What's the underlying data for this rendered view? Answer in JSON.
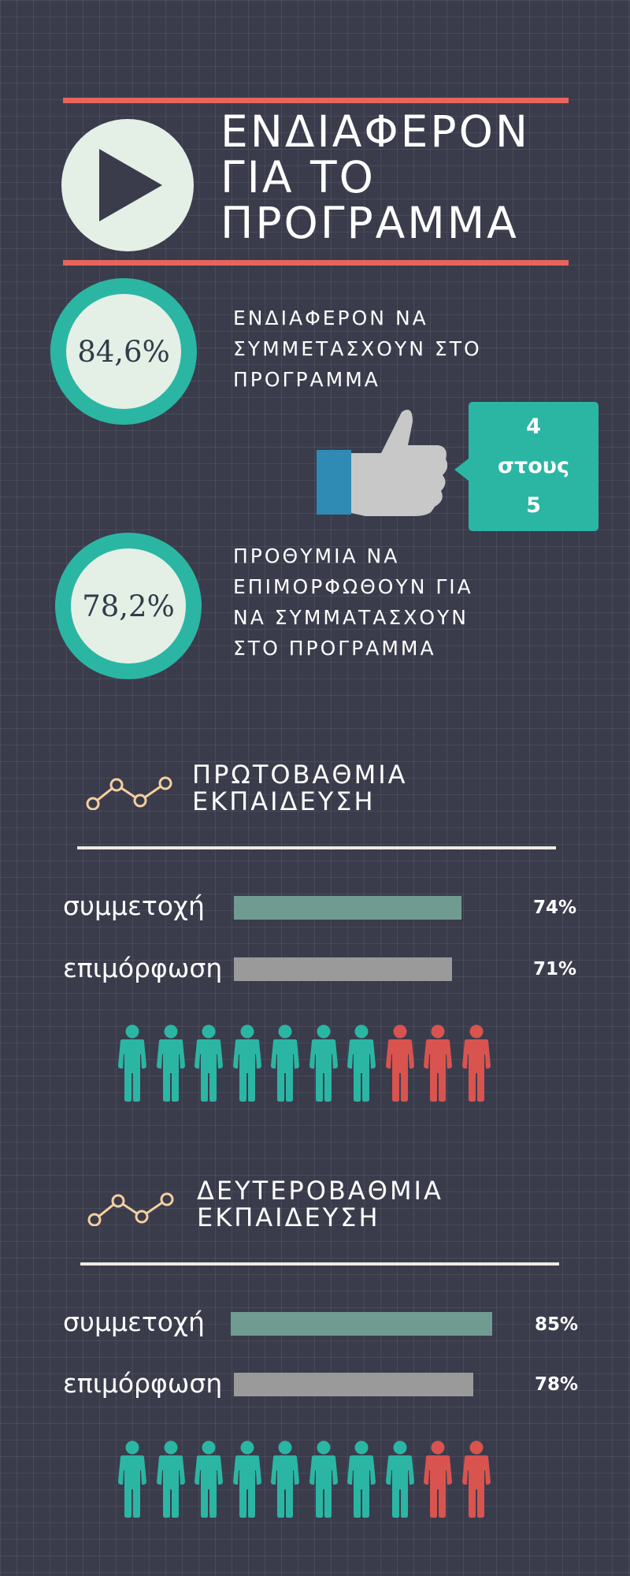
{
  "header": {
    "title": "ΕΝΔΙΑΦΕΡΟΝ\nΓΙΑ ΤΟ\nΠΡΟΓΡΑΜΜΑ",
    "icon": "play-icon"
  },
  "stats": [
    {
      "value": "84,6%",
      "text": "ΕΝΔΙΑΦΕΡΟΝ ΝΑ\nΣΥΜΜΕΤΑΣΧΟΥΝ ΣΤΟ\nΠΡΟΓΡΑΜΜΑ"
    },
    {
      "value": "78,2%",
      "text": "ΠΡΟΘΥΜΙΑ ΝΑ\nΕΠΙΜΟΡΦΩΘΟΥΝ ΓΙΑ\nΝΑ ΣΥΜΜΑΤΑΣΧΟΥΝ\nΣΤΟ ΠΡΟΓΡΑΜΜΑ"
    }
  ],
  "callout": {
    "text": "4\nστους\n5",
    "icon": "thumbs-up-icon"
  },
  "colors": {
    "background": "#3a3c4c",
    "accent_red": "#e8645c",
    "teal": "#2bb6a4",
    "bar_participation": "#6f9b91",
    "bar_training": "#9a9a9a",
    "person_teal": "#2bb6a4",
    "person_red": "#d9534f",
    "trend_icon": "#f5cf9f"
  },
  "chart_data": [
    {
      "type": "bar",
      "title": "ΠΡΩΤΟΒΑΘΜΙΑ\nΕΚΠΑΙΔΕΥΣΗ",
      "categories": [
        "συμμετοχή",
        "επιμόρφωση"
      ],
      "values": [
        74,
        71
      ],
      "value_labels": [
        "74%",
        "71%"
      ],
      "pictogram": {
        "highlighted": 7,
        "total": 10
      }
    },
    {
      "type": "bar",
      "title": "ΔΕΥΤΕΡΟΒΑΘΜΙΑ\nΕΚΠΑΙΔΕΥΣΗ",
      "categories": [
        "συμμετοχή",
        "επιμόρφωση"
      ],
      "values": [
        85,
        78
      ],
      "value_labels": [
        "85%",
        "78%"
      ],
      "pictogram": {
        "highlighted": 8,
        "total": 10
      }
    }
  ]
}
